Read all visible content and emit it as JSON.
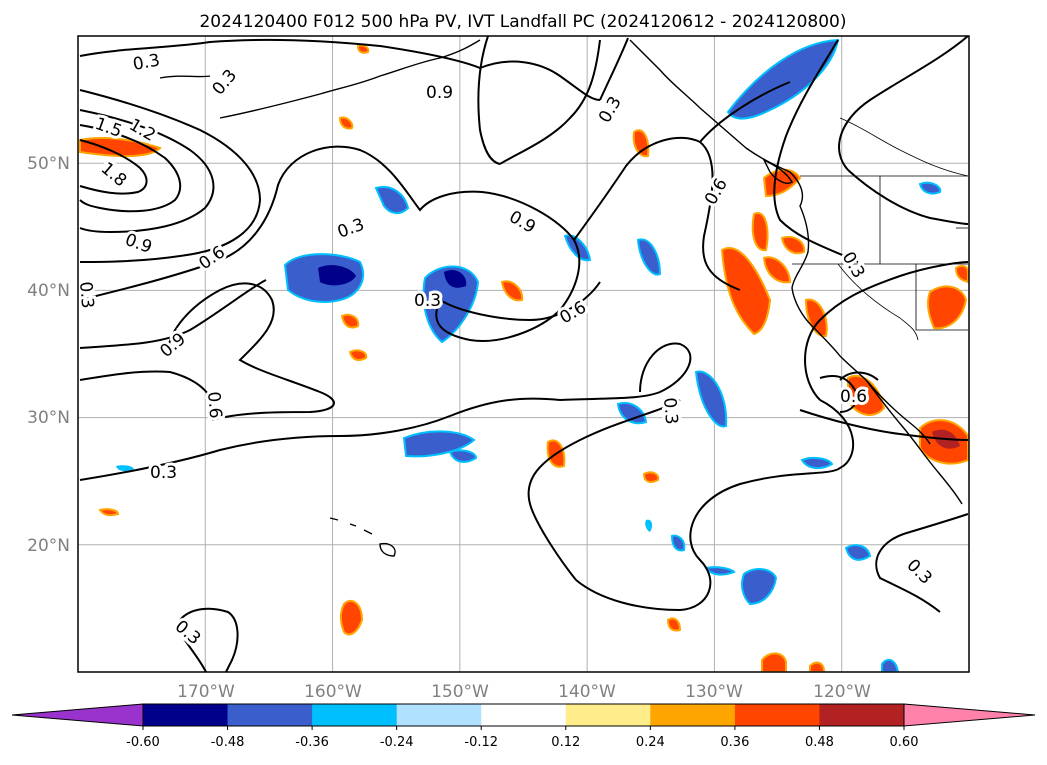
{
  "chart_data": {
    "type": "map-contour",
    "title": "2024120400 F012 500 hPa PV, IVT Landfall PC (2024120612 - 2024120800)",
    "xticks": [
      "170°W",
      "160°W",
      "150°W",
      "140°W",
      "130°W",
      "120°W"
    ],
    "yticks": [
      "50°N",
      "40°N",
      "30°N",
      "20°N"
    ],
    "lon_range": [
      -180,
      -110
    ],
    "lat_range": [
      10,
      60
    ],
    "grid": true,
    "contour_labels": [
      "0.3",
      "0.6",
      "0.9",
      "1.2",
      "1.5",
      "1.8"
    ],
    "colorbar": {
      "ticks": [
        "-0.60",
        "-0.48",
        "-0.36",
        "-0.24",
        "-0.12",
        "0.12",
        "0.24",
        "0.36",
        "0.48",
        "0.60"
      ],
      "bounds": [
        -0.6,
        -0.48,
        -0.36,
        -0.24,
        -0.12,
        0.12,
        0.24,
        0.36,
        0.48,
        0.6
      ],
      "colors": [
        "#9a32cd",
        "#00008b",
        "#3a5fcd",
        "#00bfff",
        "#b0e2ff",
        "#ffffff",
        "#ffec8b",
        "#ffa500",
        "#ff4500",
        "#b22222",
        "#ff82ab"
      ],
      "extend": "both"
    }
  }
}
